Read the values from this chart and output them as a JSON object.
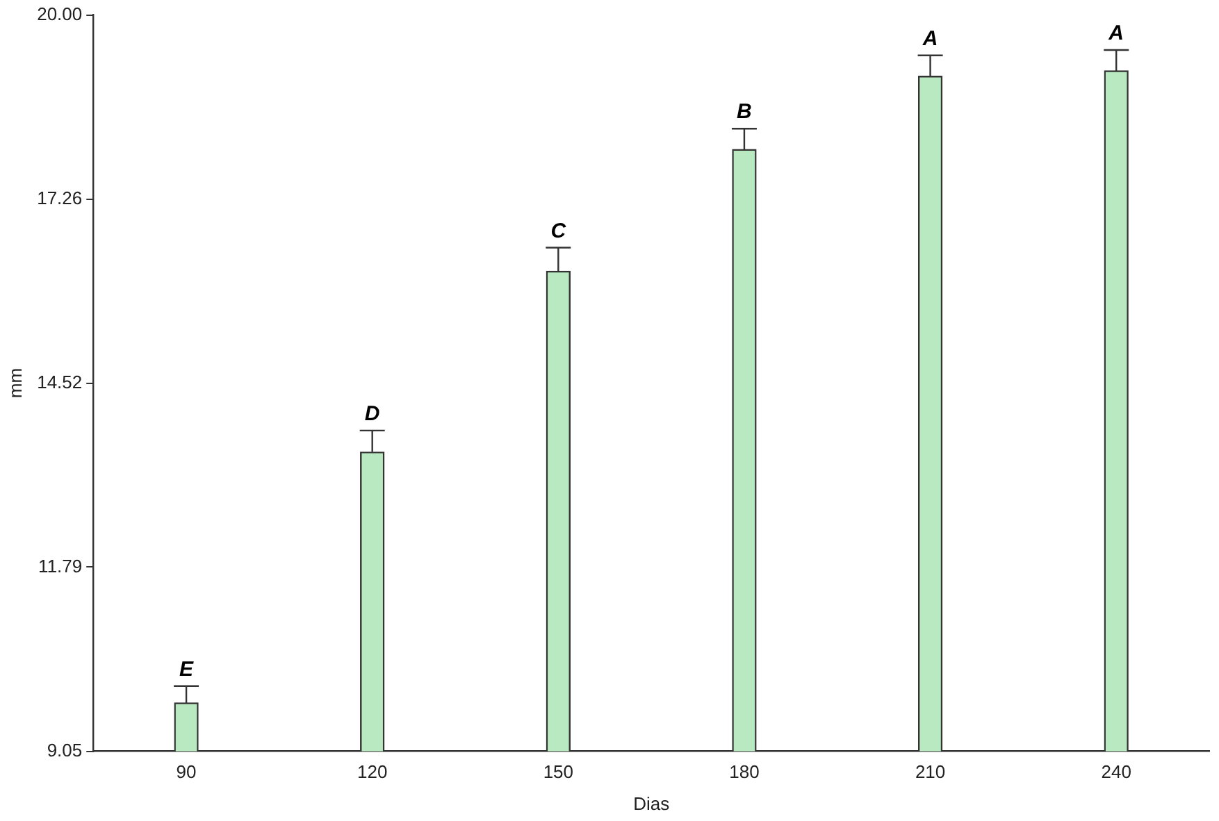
{
  "chart_data": {
    "type": "bar",
    "xlabel": "Dias",
    "ylabel": "mm",
    "categories": [
      "90",
      "120",
      "150",
      "180",
      "210",
      "240"
    ],
    "values": [
      9.77,
      13.5,
      16.19,
      18.0,
      19.09,
      19.17
    ],
    "errors": [
      0.25,
      0.32,
      0.35,
      0.31,
      0.31,
      0.31
    ],
    "color": "#b9e9c0",
    "ylim": [
      9.05,
      20
    ],
    "yticks": [
      9.05,
      11.79,
      14.52,
      17.26,
      {
        "value": 20,
        "label": "20.00"
      }
    ],
    "grid": false,
    "legend": false,
    "annotations": [
      {
        "text": "E",
        "x": "90",
        "y": 10.02
      },
      {
        "text": "D",
        "x": "120",
        "y": 13.82
      },
      {
        "text": "C",
        "x": "150",
        "y": 16.54
      },
      {
        "text": "B",
        "x": "180",
        "y": 18.31
      },
      {
        "text": "A",
        "x": "210",
        "y": 19.4
      },
      {
        "text": "A",
        "x": "240",
        "y": 19.48
      }
    ]
  }
}
